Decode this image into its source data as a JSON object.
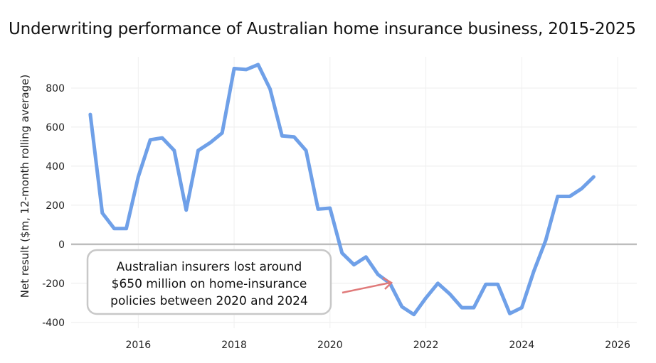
{
  "chart_data": {
    "type": "line",
    "title": "Underwriting performance of Australian home insurance business, 2015-2025",
    "xlabel": "",
    "ylabel": "Net result ($m, 12-month rolling average)",
    "xlim": [
      2014.6,
      2026.4
    ],
    "ylim": [
      -430,
      960
    ],
    "xticks": [
      2016,
      2018,
      2020,
      2022,
      2024,
      2026
    ],
    "yticks": [
      -400,
      -200,
      0,
      200,
      400,
      600,
      800
    ],
    "grid": true,
    "series": [
      {
        "name": "",
        "color": "#6fa0e8",
        "x": [
          2015.0,
          2015.25,
          2015.5,
          2015.75,
          2016.0,
          2016.25,
          2016.5,
          2016.75,
          2017.0,
          2017.25,
          2017.5,
          2017.75,
          2018.0,
          2018.25,
          2018.5,
          2018.75,
          2019.0,
          2019.25,
          2019.5,
          2019.75,
          2020.0,
          2020.25,
          2020.5,
          2020.75,
          2021.0,
          2021.25,
          2021.5,
          2021.75,
          2022.0,
          2022.25,
          2022.5,
          2022.75,
          2023.0,
          2023.25,
          2023.5,
          2023.75,
          2024.0,
          2024.25,
          2024.5,
          2024.75,
          2025.0,
          2025.25,
          2025.5
        ],
        "y": [
          665,
          160,
          80,
          80,
          345,
          535,
          545,
          480,
          175,
          480,
          520,
          570,
          900,
          895,
          920,
          795,
          555,
          550,
          480,
          180,
          185,
          -45,
          -105,
          -65,
          -155,
          -200,
          -320,
          -360,
          -275,
          -200,
          -255,
          -325,
          -325,
          -205,
          -205,
          -355,
          -325,
          -140,
          20,
          245,
          245,
          285,
          345
        ]
      }
    ],
    "reference_line": {
      "y": 0,
      "color": "#bdbdbd"
    },
    "annotation": {
      "lines": [
        "Australian insurers lost around",
        "$650 million on home-insurance",
        "policies between 2020 and 2024"
      ],
      "arrow_color": "#e07a7a",
      "box_border": "#c8c8c8"
    }
  }
}
